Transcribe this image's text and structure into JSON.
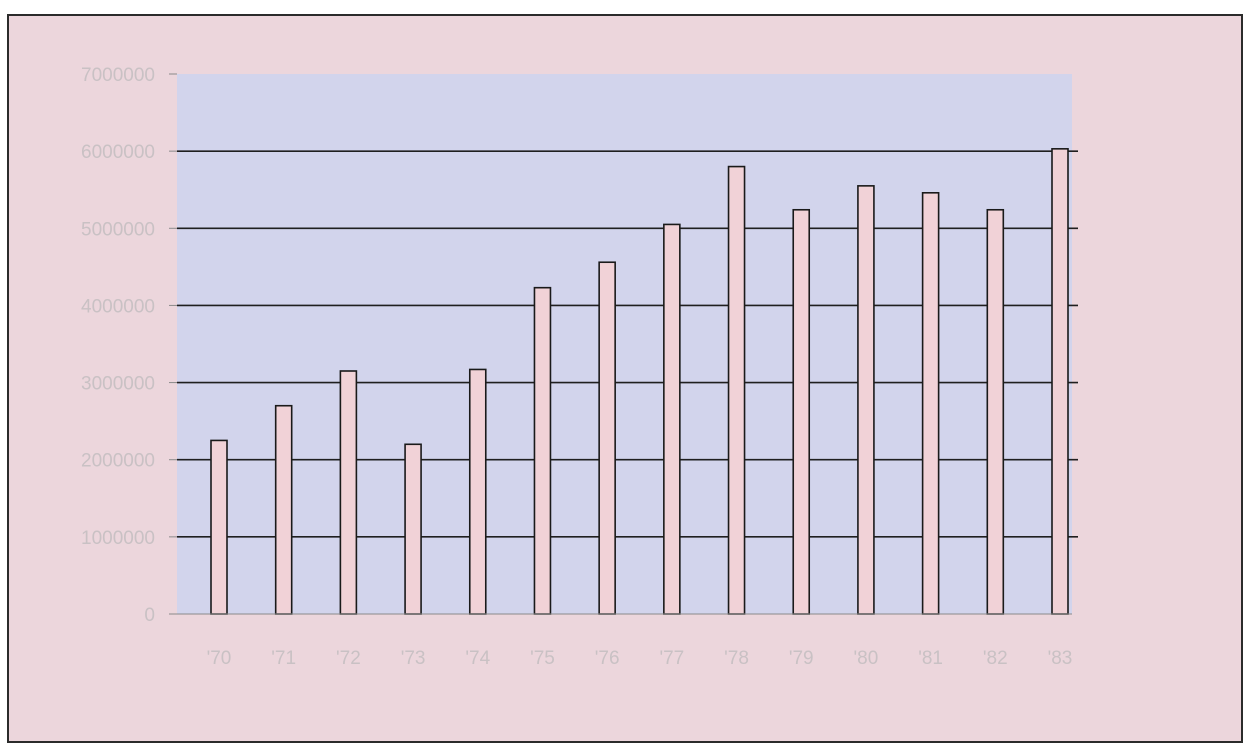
{
  "title": "",
  "chart_data": {
    "type": "bar",
    "title": "",
    "xlabel": "",
    "ylabel": "",
    "categories": [
      "'70",
      "'71",
      "'72",
      "'73",
      "'74",
      "'75",
      "'76",
      "'77",
      "'78",
      "'79",
      "'80",
      "'81",
      "'82",
      "'83"
    ],
    "values": [
      2250000,
      2700000,
      3150000,
      2200000,
      3170000,
      4230000,
      4560000,
      5050000,
      5800000,
      5240000,
      5550000,
      5460000,
      5240000,
      6030000
    ],
    "ylim": [
      0,
      7000000
    ],
    "yticks": [
      0,
      1000000,
      2000000,
      3000000,
      4000000,
      5000000,
      6000000,
      7000000
    ],
    "ytick_labels": [
      "0",
      "1000000",
      "2000000",
      "3000000",
      "4000000",
      "5000000",
      "6000000",
      "7000000"
    ],
    "grid": true,
    "legend": "none",
    "colors": {
      "frame_background": "#ecd6dc",
      "plot_background": "#d2d4ec",
      "bar_fill": "#f1d2d7",
      "bar_stroke": "#1a1a1a",
      "gridline": "#1f1f1f",
      "tick_label": "#c9c1c4"
    }
  }
}
